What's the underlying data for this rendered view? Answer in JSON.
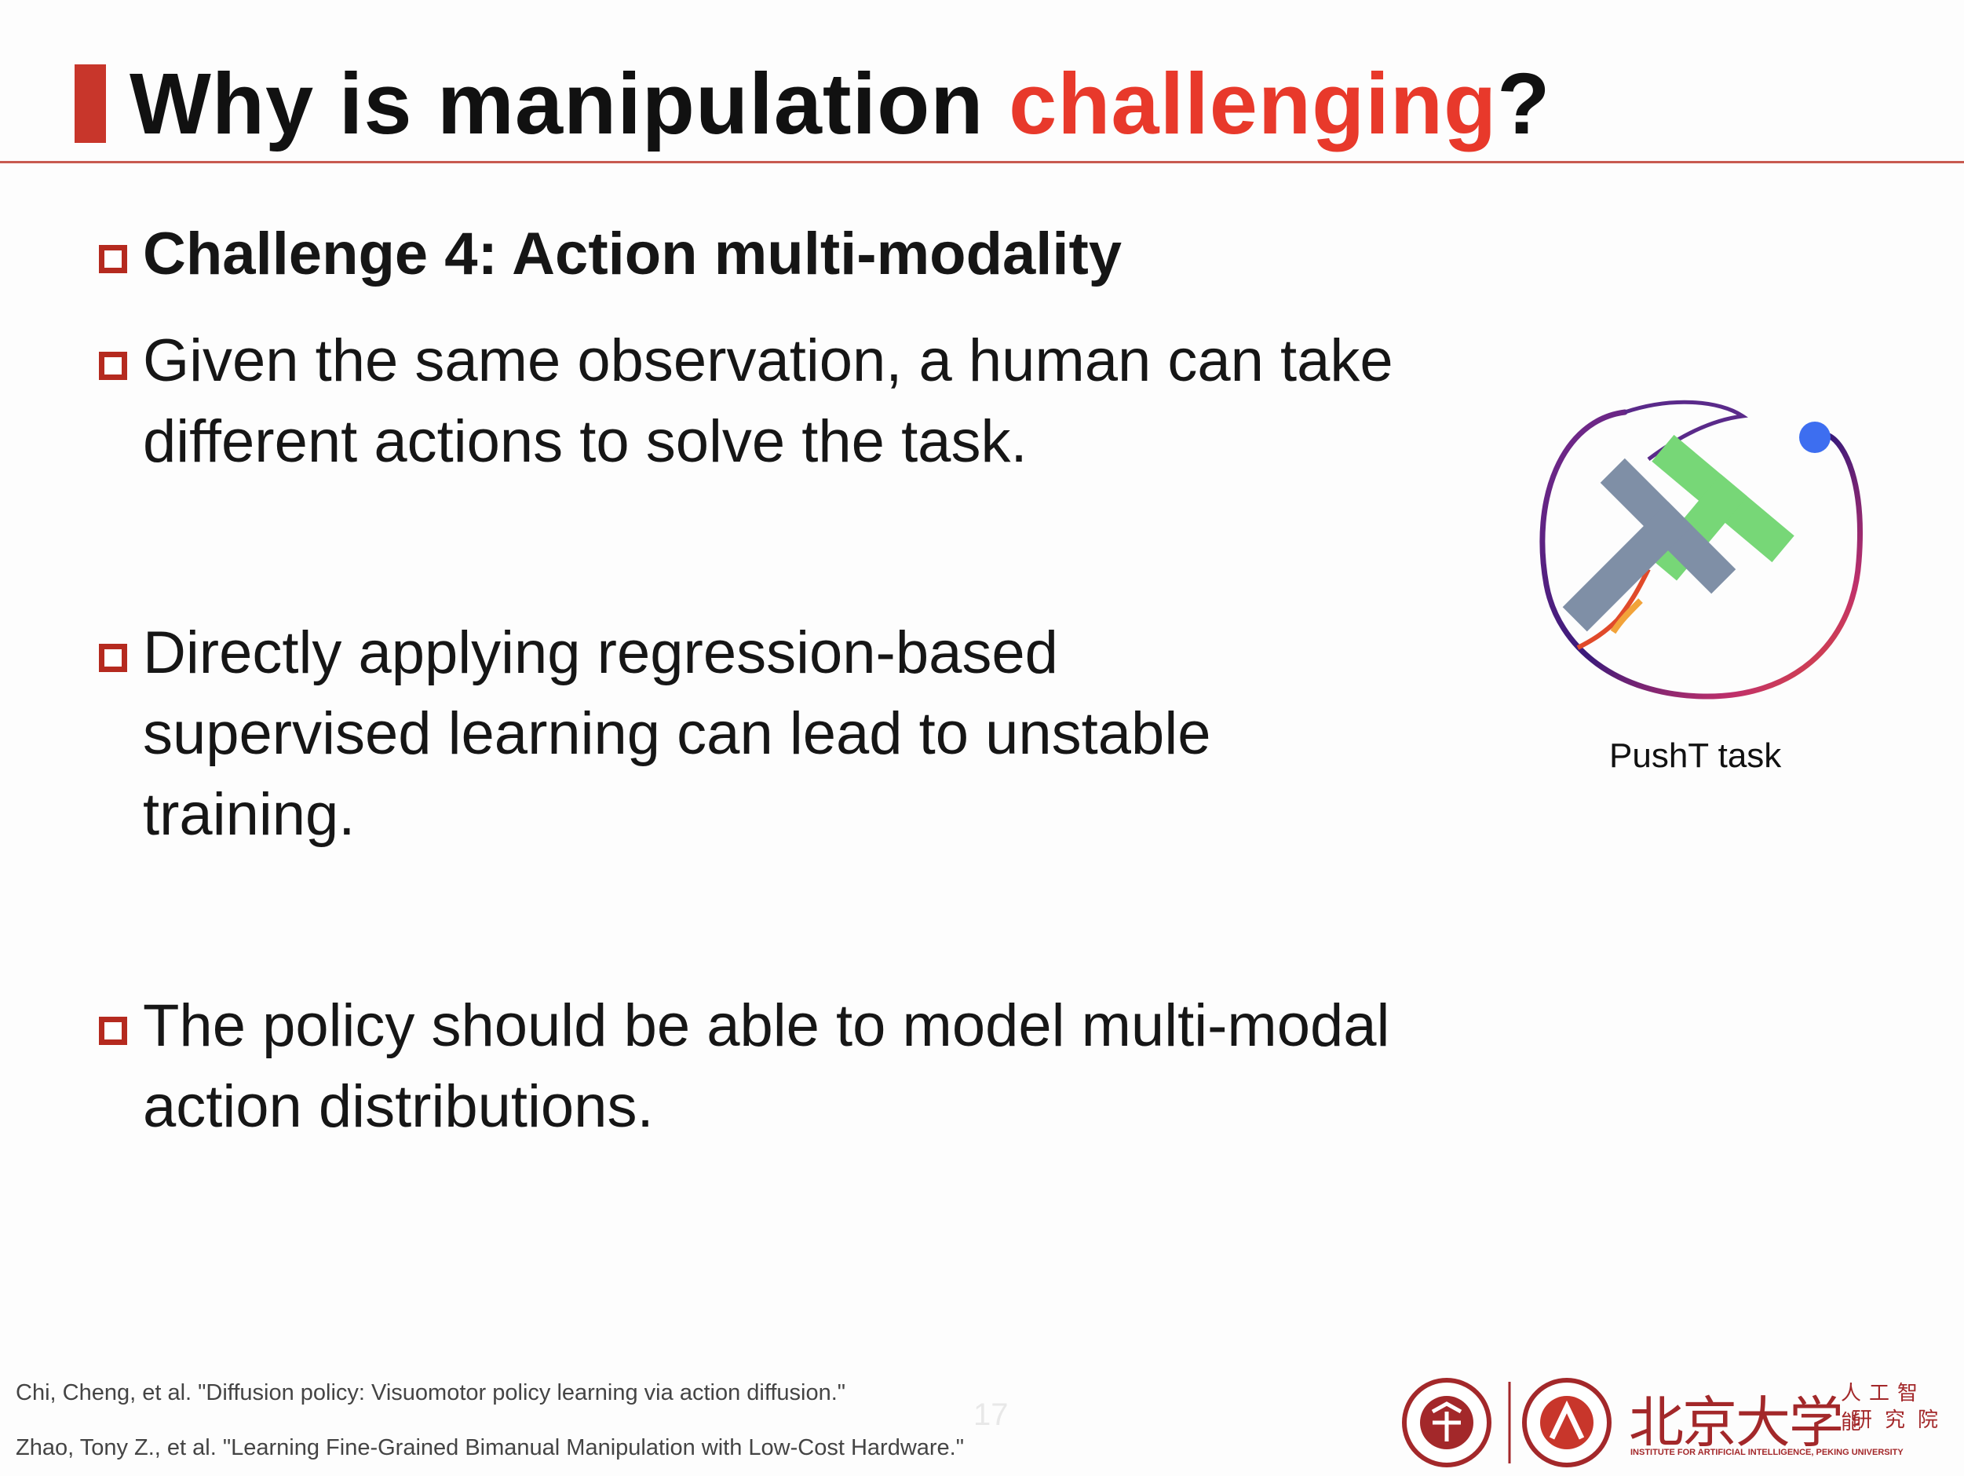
{
  "slide": {
    "title_pre": "Why is manipulation ",
    "title_accent": "challenging",
    "title_post": "?",
    "bullets": [
      "Challenge 4: Action multi-modality",
      "Given the same observation, a human can take different actions to solve the task.",
      "Directly applying regression-based supervised learning can lead to unstable training.",
      "The policy should be able to model multi-modal action distributions."
    ],
    "figure_caption": "PushT task",
    "references": [
      "Chi, Cheng, et al. \"Diffusion policy: Visuomotor policy learning via action diffusion.\"",
      "Zhao, Tony Z., et al. \"Learning Fine-Grained Bimanual Manipulation with Low-Cost Hardware.\""
    ],
    "page_number": "17",
    "logo": {
      "chinese_name": "北京大学",
      "institute_cn_1": "人工智能",
      "institute_cn_2": "研究院",
      "institute_en": "INSTITUTE FOR ARTIFICIAL INTELLIGENCE, PEKING UNIVERSITY"
    }
  },
  "colors": {
    "accent_red": "#e8392b",
    "marker_red": "#b52a1f",
    "pusht_green": "#77d777",
    "pusht_gray": "#7f8fa6",
    "agent_blue": "#3d6ef0"
  }
}
